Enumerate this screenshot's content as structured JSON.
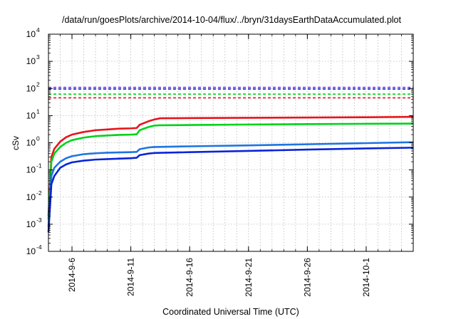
{
  "chart_data": {
    "type": "line",
    "title": "/data/run/goesPlots/archive/2014-10-04/flux/../bryn/31daysEarthDataAccumulated.plot",
    "xlabel": "Coordinated Universal Time (UTC)",
    "ylabel": "cSv",
    "y_scale": "log",
    "ylim": [
      0.0001,
      10000
    ],
    "xlim": [
      "2014-09-04",
      "2014-10-05"
    ],
    "grid": true,
    "y_ticks": [
      {
        "base": "10",
        "exp": "-4",
        "value": 0.0001
      },
      {
        "base": "10",
        "exp": "-3",
        "value": 0.001
      },
      {
        "base": "10",
        "exp": "-2",
        "value": 0.01
      },
      {
        "base": "10",
        "exp": "-1",
        "value": 0.1
      },
      {
        "base": "10",
        "exp": "0",
        "value": 1
      },
      {
        "base": "10",
        "exp": "1",
        "value": 10
      },
      {
        "base": "10",
        "exp": "2",
        "value": 100
      },
      {
        "base": "10",
        "exp": "3",
        "value": 1000
      },
      {
        "base": "10",
        "exp": "4",
        "value": 10000
      }
    ],
    "x_ticks": [
      "2014-9-6",
      "2014-9-11",
      "2014-9-16",
      "2014-9-21",
      "2014-9-26",
      "2014-10-1"
    ],
    "series": [
      {
        "color": "#e8141a",
        "style": "solid",
        "points": [
          [
            "2014-09-04T00:00",
            0.002
          ],
          [
            "2014-09-04T06:00",
            0.3
          ],
          [
            "2014-09-04T12:00",
            0.6
          ],
          [
            "2014-09-05T00:00",
            1.1
          ],
          [
            "2014-09-05T12:00",
            1.6
          ],
          [
            "2014-09-06T00:00",
            2.0
          ],
          [
            "2014-09-07T00:00",
            2.5
          ],
          [
            "2014-09-08T00:00",
            2.9
          ],
          [
            "2014-09-09T00:00",
            3.1
          ],
          [
            "2014-09-10T00:00",
            3.3
          ],
          [
            "2014-09-11T00:00",
            3.4
          ],
          [
            "2014-09-11T12:00",
            3.5
          ],
          [
            "2014-09-11T18:00",
            4.6
          ],
          [
            "2014-09-12T12:00",
            6.2
          ],
          [
            "2014-09-13T00:00",
            7.2
          ],
          [
            "2014-09-13T12:00",
            8.0
          ],
          [
            "2014-09-16T00:00",
            8.1
          ],
          [
            "2014-09-21T00:00",
            8.3
          ],
          [
            "2014-09-26T00:00",
            8.5
          ],
          [
            "2014-10-01T00:00",
            8.7
          ],
          [
            "2014-10-05T00:00",
            9.0
          ]
        ]
      },
      {
        "color": "#00d21a",
        "style": "solid",
        "points": [
          [
            "2014-09-04T00:00",
            0.0015
          ],
          [
            "2014-09-04T06:00",
            0.2
          ],
          [
            "2014-09-04T12:00",
            0.4
          ],
          [
            "2014-09-05T00:00",
            0.7
          ],
          [
            "2014-09-05T12:00",
            1.0
          ],
          [
            "2014-09-06T00:00",
            1.25
          ],
          [
            "2014-09-07T00:00",
            1.55
          ],
          [
            "2014-09-08T00:00",
            1.75
          ],
          [
            "2014-09-09T00:00",
            1.85
          ],
          [
            "2014-09-10T00:00",
            1.95
          ],
          [
            "2014-09-11T00:00",
            2.0
          ],
          [
            "2014-09-11T12:00",
            2.05
          ],
          [
            "2014-09-11T18:00",
            2.9
          ],
          [
            "2014-09-12T12:00",
            3.8
          ],
          [
            "2014-09-13T00:00",
            4.3
          ],
          [
            "2014-09-13T12:00",
            4.4
          ],
          [
            "2014-09-16T00:00",
            4.5
          ],
          [
            "2014-09-21T00:00",
            4.7
          ],
          [
            "2014-09-26T00:00",
            4.85
          ],
          [
            "2014-10-01T00:00",
            5.0
          ],
          [
            "2014-10-05T00:00",
            5.1
          ]
        ]
      },
      {
        "color": "#1e74e0",
        "style": "solid",
        "points": [
          [
            "2014-09-04T00:00",
            0.0008
          ],
          [
            "2014-09-04T06:00",
            0.06
          ],
          [
            "2014-09-04T12:00",
            0.12
          ],
          [
            "2014-09-05T00:00",
            0.2
          ],
          [
            "2014-09-05T12:00",
            0.27
          ],
          [
            "2014-09-06T00:00",
            0.32
          ],
          [
            "2014-09-07T00:00",
            0.38
          ],
          [
            "2014-09-08T00:00",
            0.41
          ],
          [
            "2014-09-09T00:00",
            0.43
          ],
          [
            "2014-09-10T00:00",
            0.44
          ],
          [
            "2014-09-11T00:00",
            0.45
          ],
          [
            "2014-09-11T12:00",
            0.46
          ],
          [
            "2014-09-11T18:00",
            0.58
          ],
          [
            "2014-09-12T12:00",
            0.67
          ],
          [
            "2014-09-13T00:00",
            0.7
          ],
          [
            "2014-09-16T00:00",
            0.74
          ],
          [
            "2014-09-21T00:00",
            0.8
          ],
          [
            "2014-09-26T00:00",
            0.88
          ],
          [
            "2014-10-01T00:00",
            0.97
          ],
          [
            "2014-10-05T00:00",
            1.05
          ]
        ]
      },
      {
        "color": "#0a24d8",
        "style": "solid",
        "points": [
          [
            "2014-09-04T00:00",
            0.0005
          ],
          [
            "2014-09-04T06:00",
            0.03
          ],
          [
            "2014-09-04T12:00",
            0.06
          ],
          [
            "2014-09-05T00:00",
            0.12
          ],
          [
            "2014-09-05T12:00",
            0.16
          ],
          [
            "2014-09-06T00:00",
            0.19
          ],
          [
            "2014-09-07T00:00",
            0.22
          ],
          [
            "2014-09-08T00:00",
            0.24
          ],
          [
            "2014-09-09T00:00",
            0.25
          ],
          [
            "2014-09-10T00:00",
            0.26
          ],
          [
            "2014-09-11T00:00",
            0.27
          ],
          [
            "2014-09-11T12:00",
            0.28
          ],
          [
            "2014-09-11T18:00",
            0.35
          ],
          [
            "2014-09-12T12:00",
            0.4
          ],
          [
            "2014-09-13T00:00",
            0.42
          ],
          [
            "2014-09-16T00:00",
            0.45
          ],
          [
            "2014-09-21T00:00",
            0.5
          ],
          [
            "2014-09-26T00:00",
            0.56
          ],
          [
            "2014-10-01T00:00",
            0.62
          ],
          [
            "2014-10-05T00:00",
            0.66
          ]
        ]
      }
    ],
    "threshold_lines": [
      {
        "color": "#8a2be2",
        "style": "dashed",
        "value": 110
      },
      {
        "color": "#0a24d8",
        "style": "dashed",
        "value": 95
      },
      {
        "color": "#00d21a",
        "style": "dashed",
        "value": 62
      },
      {
        "color": "#e8141a",
        "style": "dashed",
        "value": 45
      }
    ]
  }
}
